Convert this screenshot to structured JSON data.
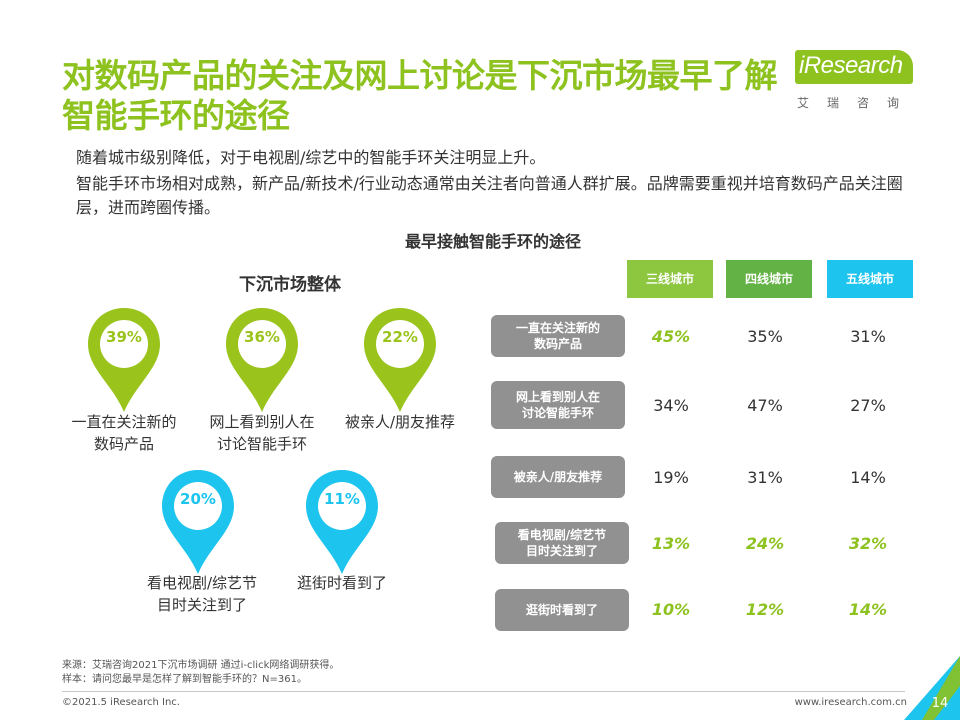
{
  "title": "对数码产品的关注及网上讨论是下沉市场最早了解智能手环的途径",
  "logo": {
    "text": "iResearch",
    "subtitle": "艾瑞咨询"
  },
  "bullets": [
    "随着城市级别降低，对于电视剧/综艺中的智能手环关注明显上升。",
    "智能手环市场相对成熟，新产品/新技术/行业动态通常由关注者向普通人群扩展。品牌需要重视并培育数码产品关注圈层，进而跨圈传播。"
  ],
  "chart_title": "最早接触智能手环的途径",
  "overall": {
    "title": "下沉市场整体",
    "items": [
      {
        "value": "39%",
        "label_l1": "一直在关注新的",
        "label_l2": "数码产品",
        "color": "#9ac31c"
      },
      {
        "value": "36%",
        "label_l1": "网上看到别人在",
        "label_l2": "讨论智能手环",
        "color": "#9ac31c"
      },
      {
        "value": "22%",
        "label_l1": "被亲人/朋友推荐",
        "label_l2": "",
        "color": "#9ac31c"
      },
      {
        "value": "20%",
        "label_l1": "看电视剧/综艺节",
        "label_l2": "目时关注到了",
        "color": "#1cc4ee"
      },
      {
        "value": "11%",
        "label_l1": "逛街时看到了",
        "label_l2": "",
        "color": "#1cc4ee"
      }
    ]
  },
  "table": {
    "columns": [
      {
        "label": "三线城市",
        "color": "#8dc63f"
      },
      {
        "label": "四线城市",
        "color": "#63b245"
      },
      {
        "label": "五线城市",
        "color": "#1cc4ee"
      }
    ],
    "rows": [
      {
        "label_l1": "一直在关注新的",
        "label_l2": "数码产品",
        "values": [
          "45%",
          "35%",
          "31%"
        ],
        "highlight": [
          true,
          false,
          false
        ]
      },
      {
        "label_l1": "网上看到别人在",
        "label_l2": "讨论智能手环",
        "values": [
          "34%",
          "47%",
          "27%"
        ],
        "highlight": [
          false,
          false,
          false
        ]
      },
      {
        "label_l1": "被亲人/朋友推荐",
        "label_l2": "",
        "values": [
          "19%",
          "31%",
          "14%"
        ],
        "highlight": [
          false,
          false,
          false
        ]
      },
      {
        "label_l1": "看电视剧/综艺节",
        "label_l2": "目时关注到了",
        "values": [
          "13%",
          "24%",
          "32%"
        ],
        "highlight": [
          true,
          true,
          true
        ]
      },
      {
        "label_l1": "逛街时看到了",
        "label_l2": "",
        "values": [
          "10%",
          "12%",
          "14%"
        ],
        "highlight": [
          true,
          true,
          true
        ]
      }
    ]
  },
  "footer": {
    "source": "来源：艾瑞咨询2021下沉市场调研 通过i-click网络调研获得。",
    "sample": "样本：请问您最早是怎样了解到智能手环的？N=361。",
    "copyright": "©2021.5 iResearch Inc.",
    "website": "www.iresearch.com.cn",
    "page": "14"
  },
  "colors": {
    "accent": "#8dc21f",
    "cyan": "#1cc4ee",
    "gray_label": "#919191"
  }
}
